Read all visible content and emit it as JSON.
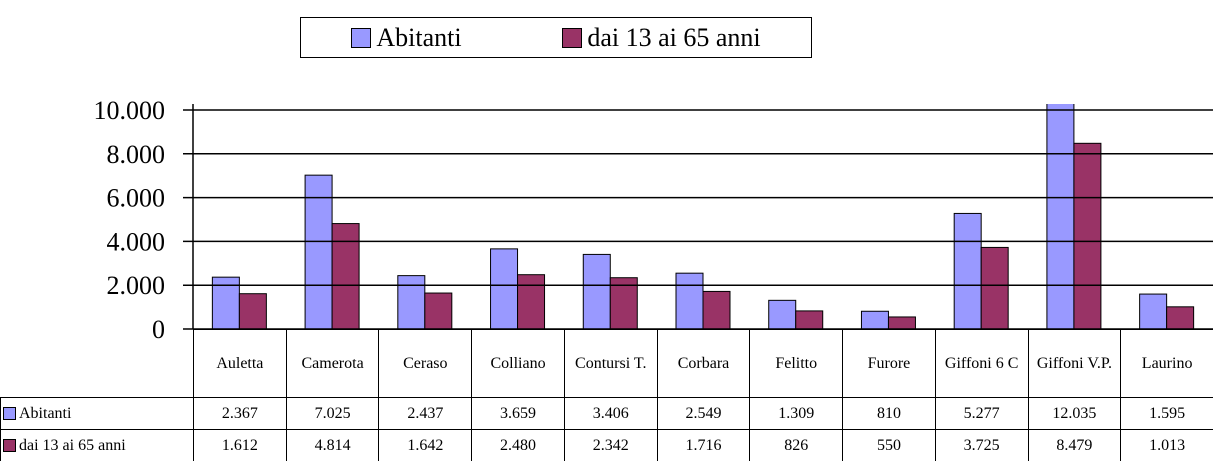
{
  "chart_data": {
    "type": "bar",
    "categories": [
      "Auletta",
      "Camerota",
      "Ceraso",
      "Colliano",
      "Contursi T.",
      "Corbara",
      "Felitto",
      "Furore",
      "Giffoni 6 C",
      "Giffoni V.P.",
      "Laurino"
    ],
    "series": [
      {
        "name": "Abitanti",
        "color": "#9999ff",
        "values": [
          2367,
          7025,
          2437,
          3659,
          3406,
          2549,
          1309,
          810,
          5277,
          12035,
          1595
        ],
        "value_labels": [
          "2.367",
          "7.025",
          "2.437",
          "3.659",
          "3.406",
          "2.549",
          "1.309",
          "810",
          "5.277",
          "12.035",
          "1.595"
        ]
      },
      {
        "name": "dai 13 ai 65 anni",
        "color": "#993366",
        "values": [
          1612,
          4814,
          1642,
          2480,
          2342,
          1716,
          826,
          550,
          3725,
          8479,
          1013
        ],
        "value_labels": [
          "1.612",
          "4.814",
          "1.642",
          "2.480",
          "2.342",
          "1.716",
          "826",
          "550",
          "3.725",
          "8.479",
          "1.013"
        ]
      }
    ],
    "ylim": [
      0,
      10000
    ],
    "yticks": [
      0,
      {
        "value": 2000,
        "label": "2.000"
      },
      {
        "value": 4000,
        "label": "4.000"
      },
      {
        "value": 6000,
        "label": "6.000"
      },
      {
        "value": 8000,
        "label": "8.000"
      },
      {
        "value": 10000,
        "label": "10.000"
      }
    ],
    "grid": true,
    "legend": "top"
  }
}
